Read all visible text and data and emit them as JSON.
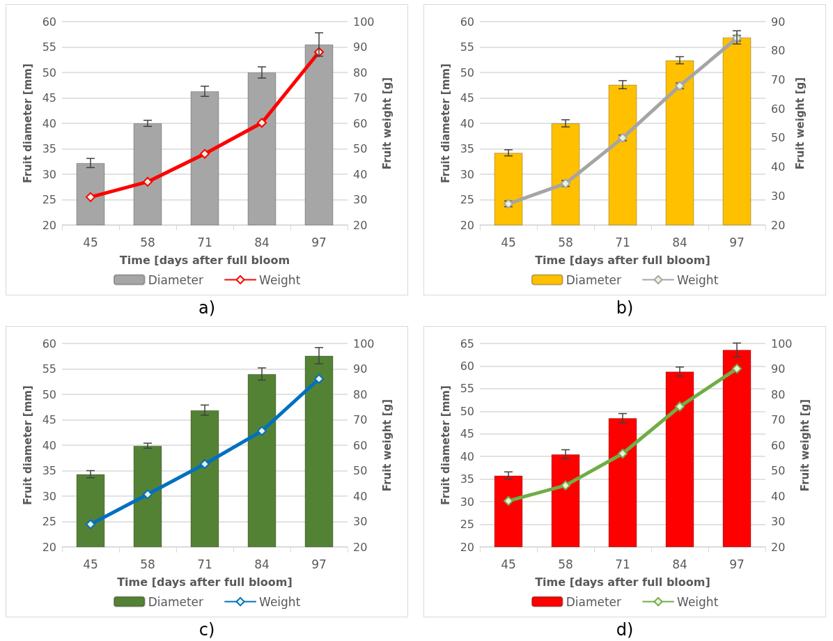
{
  "chart_data": [
    {
      "type": "bar",
      "xlabel": "Time [days after full bloom",
      "ylabel": "Fruit diameter [mm]",
      "y2label": "Fruit weight [g]",
      "categories": [
        "45",
        "58",
        "71",
        "84",
        "97"
      ],
      "ylim": [
        20,
        60
      ],
      "yticks": [
        20,
        25,
        30,
        35,
        40,
        45,
        50,
        55,
        60
      ],
      "y2lim": [
        20,
        100
      ],
      "y2ticks": [
        20,
        30,
        40,
        50,
        60,
        70,
        80,
        90,
        100
      ],
      "grid": "y",
      "legend": "bottom",
      "marker": "diamond",
      "annotations": [
        "a)"
      ],
      "series": [
        {
          "name": "Diameter",
          "color": "#a6a6a6",
          "values": [
            32.2,
            40,
            46.3,
            50,
            55.5
          ],
          "errors": [
            0.9,
            0.6,
            1,
            1.1,
            2.3
          ]
        },
        {
          "name": "Weight",
          "type": "line",
          "axis": "y2",
          "color": "#ff0000",
          "values": [
            31,
            37,
            48,
            60.2,
            88
          ]
        }
      ]
    },
    {
      "type": "bar",
      "xlabel": "Time [days after full bloom]",
      "ylabel": "Fruit diameter [mm]",
      "y2label": "Fruit weight [g]",
      "categories": [
        "45",
        "58",
        "71",
        "84",
        "97"
      ],
      "ylim": [
        20,
        60
      ],
      "yticks": [
        20,
        25,
        30,
        35,
        40,
        45,
        50,
        55,
        60
      ],
      "y2lim": [
        20,
        90
      ],
      "y2ticks": [
        20,
        30,
        40,
        50,
        60,
        70,
        80,
        90
      ],
      "grid": "y",
      "legend": "bottom",
      "marker": "diamond",
      "annotations": [
        "b)"
      ],
      "series": [
        {
          "name": "Diameter",
          "color": "#ffc000",
          "values": [
            34.2,
            40,
            47.6,
            52.4,
            56.9
          ],
          "errors": [
            0.6,
            0.7,
            0.8,
            0.7,
            1.3
          ]
        },
        {
          "name": "Weight",
          "type": "line",
          "axis": "y2",
          "color": "#a5a5a5",
          "values": [
            27.3,
            34.3,
            50,
            67.9,
            84.3
          ],
          "errors": [
            1,
            1,
            1,
            1,
            1
          ]
        }
      ]
    },
    {
      "type": "bar",
      "xlabel": "Time [days after full bloom]",
      "ylabel": "Fruit diameter [mm]",
      "y2label": "Fruit weight [g]",
      "categories": [
        "45",
        "58",
        "71",
        "84",
        "97"
      ],
      "ylim": [
        20,
        60
      ],
      "yticks": [
        20,
        25,
        30,
        35,
        40,
        45,
        50,
        55,
        60
      ],
      "y2lim": [
        20,
        100
      ],
      "y2ticks": [
        20,
        30,
        40,
        50,
        60,
        70,
        80,
        90,
        100
      ],
      "grid": "y",
      "legend": "bottom",
      "marker": "diamond",
      "annotations": [
        "c)"
      ],
      "series": [
        {
          "name": "Diameter",
          "color": "#548235",
          "values": [
            34.3,
            39.9,
            46.9,
            54,
            57.6
          ],
          "errors": [
            0.7,
            0.5,
            1,
            1.2,
            1.6
          ]
        },
        {
          "name": "Weight",
          "type": "line",
          "axis": "y2",
          "color": "#0070c0",
          "values": [
            28.9,
            40.7,
            52.6,
            65.6,
            86.1
          ]
        }
      ]
    },
    {
      "type": "bar",
      "xlabel": "Time [days after full bloom]",
      "ylabel": "Fruit diameter [mm]",
      "y2label": "Fruit weight [g]",
      "categories": [
        "45",
        "58",
        "71",
        "84",
        "97"
      ],
      "ylim": [
        20,
        65
      ],
      "yticks": [
        20,
        25,
        30,
        35,
        40,
        45,
        50,
        55,
        60,
        65
      ],
      "y2lim": [
        20,
        100
      ],
      "y2ticks": [
        20,
        30,
        40,
        50,
        60,
        70,
        80,
        90,
        100
      ],
      "grid": "y",
      "legend": "bottom",
      "marker": "diamond",
      "annotations": [
        "d)"
      ],
      "series": [
        {
          "name": "Diameter",
          "color": "#ff0000",
          "values": [
            35.8,
            40.5,
            48.5,
            58.8,
            63.6
          ],
          "errors": [
            0.8,
            1,
            1,
            1,
            1.5
          ]
        },
        {
          "name": "Weight",
          "type": "line",
          "axis": "y2",
          "color": "#70ad47",
          "values": [
            38.1,
            44.2,
            56.7,
            75.2,
            90.1
          ]
        }
      ]
    }
  ]
}
